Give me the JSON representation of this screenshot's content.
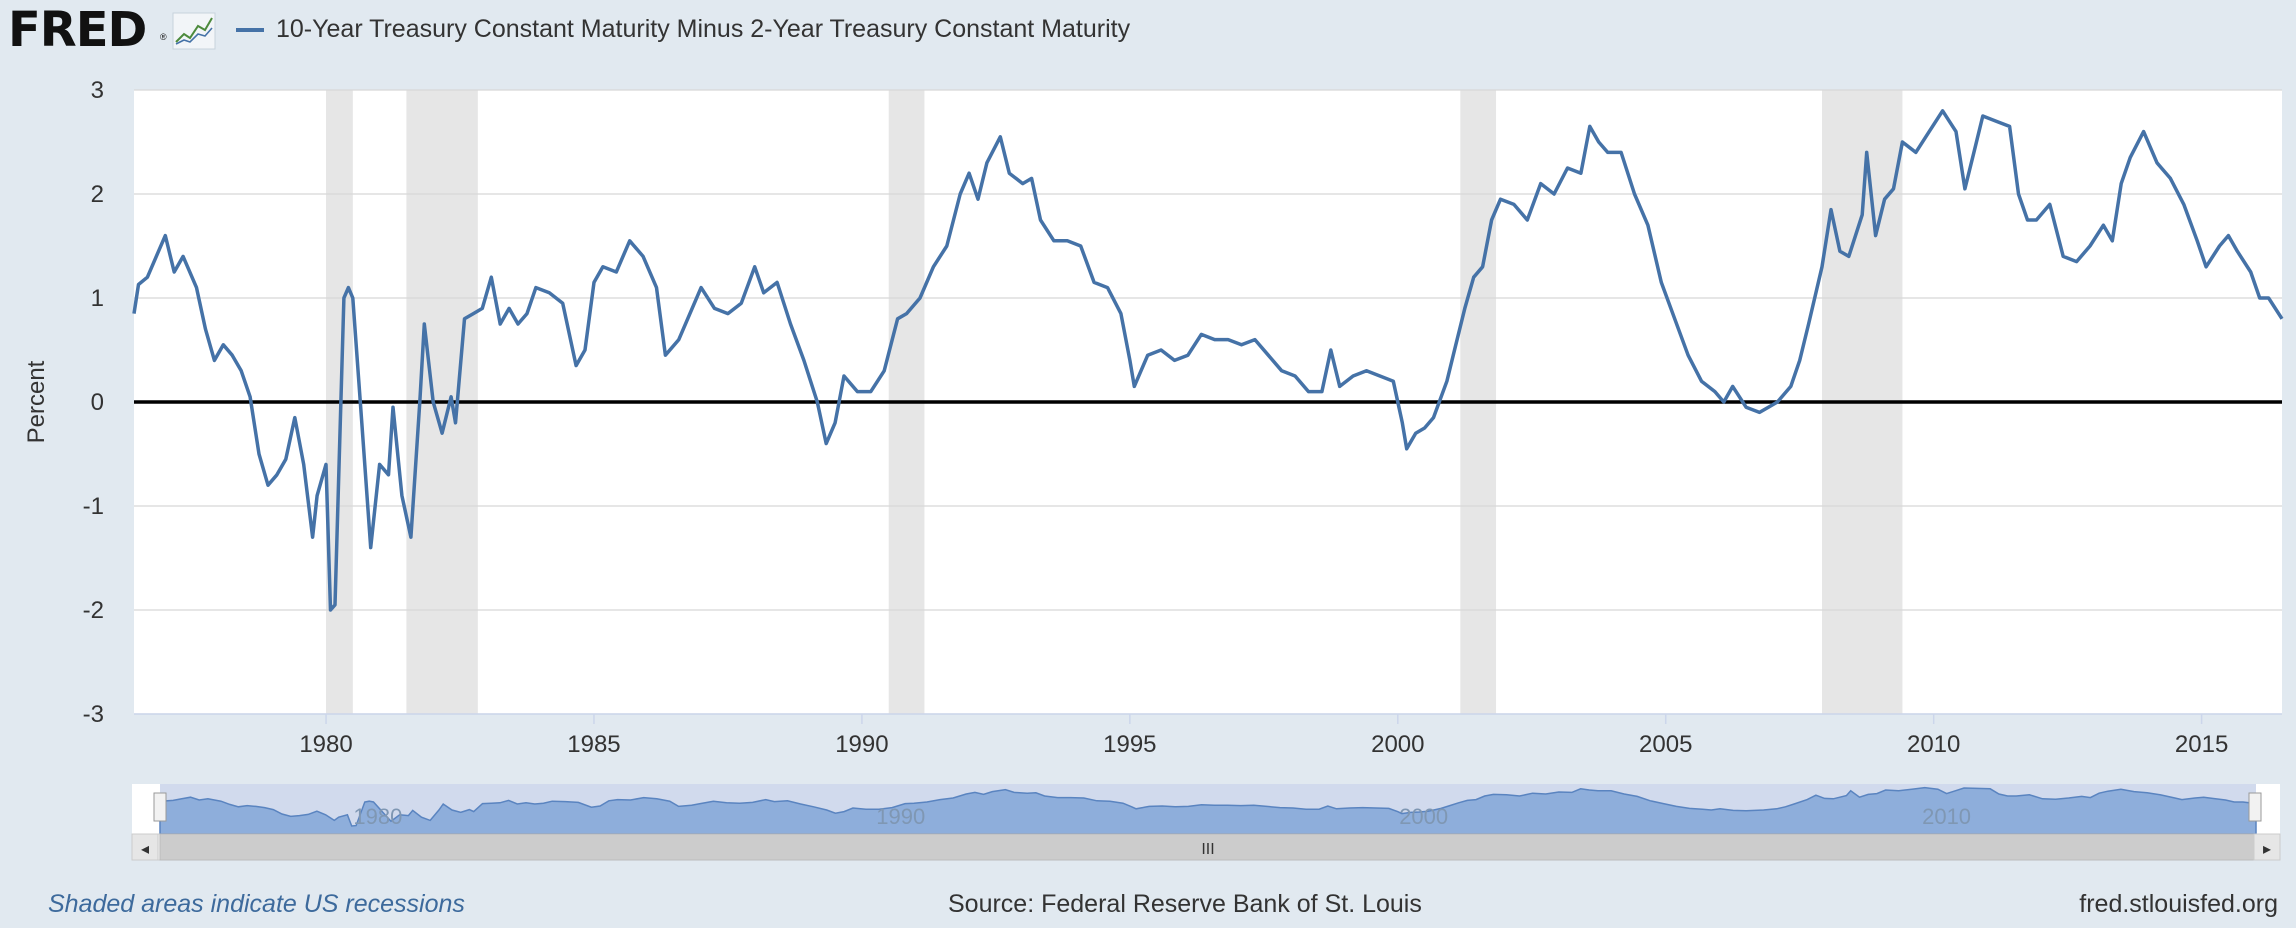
{
  "header": {
    "logo_text": "FRED",
    "logo_mark": "®",
    "logo_icon": "line-chart-icon",
    "series_title": "10-Year Treasury Constant Maturity Minus 2-Year Treasury Constant Maturity",
    "series_color": "#4572a7"
  },
  "footer": {
    "recession_note": "Shaded areas indicate US recessions",
    "source": "Source: Federal Reserve Bank of St. Louis",
    "url": "fred.stlouisfed.org"
  },
  "navigator": {
    "labels": [
      "1980",
      "1990",
      "2000",
      "2010"
    ],
    "scrollbar_grip": "III",
    "left_arrow": "◂",
    "right_arrow": "▸"
  },
  "chart_data": {
    "type": "line",
    "title": "10-Year Treasury Constant Maturity Minus 2-Year Treasury Constant Maturity",
    "xlabel": "",
    "ylabel": "Percent",
    "ylim": [
      -3,
      3
    ],
    "xlim": [
      "1976-06",
      "2016-07"
    ],
    "x_ticks": [
      "1980",
      "1985",
      "1990",
      "1995",
      "2000",
      "2005",
      "2010",
      "2015"
    ],
    "y_ticks": [
      "3",
      "2",
      "1",
      "0",
      "-1",
      "-2",
      "-3"
    ],
    "grid": true,
    "zero_line": true,
    "line_color": "#4572a7",
    "recession_color": "#e6e6e6",
    "recessions": [
      [
        "1980-01",
        "1980-07"
      ],
      [
        "1981-07",
        "1982-11"
      ],
      [
        "1990-07",
        "1991-03"
      ],
      [
        "2001-03",
        "2001-11"
      ],
      [
        "2007-12",
        "2009-06"
      ]
    ],
    "series": [
      {
        "values": [
          [
            "1976-06",
            0.85
          ],
          [
            "1976-07",
            1.13
          ],
          [
            "1976-09",
            1.2
          ],
          [
            "1976-11",
            1.4
          ],
          [
            "1977-01",
            1.6
          ],
          [
            "1977-03",
            1.25
          ],
          [
            "1977-05",
            1.4
          ],
          [
            "1977-08",
            1.1
          ],
          [
            "1977-10",
            0.7
          ],
          [
            "1977-12",
            0.4
          ],
          [
            "1978-02",
            0.55
          ],
          [
            "1978-04",
            0.45
          ],
          [
            "1978-06",
            0.3
          ],
          [
            "1978-08",
            0.05
          ],
          [
            "1978-10",
            -0.5
          ],
          [
            "1978-12",
            -0.8
          ],
          [
            "1979-02",
            -0.7
          ],
          [
            "1979-04",
            -0.55
          ],
          [
            "1979-06",
            -0.15
          ],
          [
            "1979-08",
            -0.6
          ],
          [
            "1979-10",
            -1.3
          ],
          [
            "1979-11",
            -0.9
          ],
          [
            "1980-01",
            -0.6
          ],
          [
            "1980-02",
            -2.0
          ],
          [
            "1980-03",
            -1.95
          ],
          [
            "1980-05",
            1.0
          ],
          [
            "1980-06",
            1.1
          ],
          [
            "1980-07",
            1.0
          ],
          [
            "1980-09",
            -0.2
          ],
          [
            "1980-11",
            -1.4
          ],
          [
            "1981-01",
            -0.6
          ],
          [
            "1981-03",
            -0.7
          ],
          [
            "1981-04",
            -0.05
          ],
          [
            "1981-06",
            -0.9
          ],
          [
            "1981-08",
            -1.3
          ],
          [
            "1981-10",
            0.0
          ],
          [
            "1981-11",
            0.75
          ],
          [
            "1982-01",
            0.0
          ],
          [
            "1982-03",
            -0.3
          ],
          [
            "1982-05",
            0.05
          ],
          [
            "1982-06",
            -0.2
          ],
          [
            "1982-08",
            0.8
          ],
          [
            "1982-10",
            0.85
          ],
          [
            "1982-12",
            0.9
          ],
          [
            "1983-02",
            1.2
          ],
          [
            "1983-04",
            0.75
          ],
          [
            "1983-06",
            0.9
          ],
          [
            "1983-08",
            0.75
          ],
          [
            "1983-10",
            0.85
          ],
          [
            "1983-12",
            1.1
          ],
          [
            "1984-03",
            1.05
          ],
          [
            "1984-06",
            0.95
          ],
          [
            "1984-09",
            0.35
          ],
          [
            "1984-11",
            0.5
          ],
          [
            "1985-01",
            1.15
          ],
          [
            "1985-03",
            1.3
          ],
          [
            "1985-06",
            1.25
          ],
          [
            "1985-09",
            1.55
          ],
          [
            "1985-12",
            1.4
          ],
          [
            "1986-03",
            1.1
          ],
          [
            "1986-05",
            0.45
          ],
          [
            "1986-08",
            0.6
          ],
          [
            "1986-10",
            0.8
          ],
          [
            "1987-01",
            1.1
          ],
          [
            "1987-04",
            0.9
          ],
          [
            "1987-07",
            0.85
          ],
          [
            "1987-10",
            0.95
          ],
          [
            "1988-01",
            1.3
          ],
          [
            "1988-03",
            1.05
          ],
          [
            "1988-06",
            1.15
          ],
          [
            "1988-09",
            0.75
          ],
          [
            "1988-12",
            0.4
          ],
          [
            "1989-03",
            0.0
          ],
          [
            "1989-05",
            -0.4
          ],
          [
            "1989-07",
            -0.2
          ],
          [
            "1989-09",
            0.25
          ],
          [
            "1989-12",
            0.1
          ],
          [
            "1990-03",
            0.1
          ],
          [
            "1990-06",
            0.3
          ],
          [
            "1990-09",
            0.8
          ],
          [
            "1990-11",
            0.85
          ],
          [
            "1991-02",
            1.0
          ],
          [
            "1991-05",
            1.3
          ],
          [
            "1991-08",
            1.5
          ],
          [
            "1991-11",
            2.0
          ],
          [
            "1992-01",
            2.2
          ],
          [
            "1992-03",
            1.95
          ],
          [
            "1992-05",
            2.3
          ],
          [
            "1992-08",
            2.55
          ],
          [
            "1992-10",
            2.2
          ],
          [
            "1993-01",
            2.1
          ],
          [
            "1993-03",
            2.15
          ],
          [
            "1993-05",
            1.75
          ],
          [
            "1993-08",
            1.55
          ],
          [
            "1993-11",
            1.55
          ],
          [
            "1994-02",
            1.5
          ],
          [
            "1994-05",
            1.15
          ],
          [
            "1994-08",
            1.1
          ],
          [
            "1994-11",
            0.85
          ],
          [
            "1995-01",
            0.4
          ],
          [
            "1995-02",
            0.15
          ],
          [
            "1995-05",
            0.45
          ],
          [
            "1995-08",
            0.5
          ],
          [
            "1995-11",
            0.4
          ],
          [
            "1996-02",
            0.45
          ],
          [
            "1996-05",
            0.65
          ],
          [
            "1996-08",
            0.6
          ],
          [
            "1996-11",
            0.6
          ],
          [
            "1997-02",
            0.55
          ],
          [
            "1997-05",
            0.6
          ],
          [
            "1997-08",
            0.45
          ],
          [
            "1997-11",
            0.3
          ],
          [
            "1998-02",
            0.25
          ],
          [
            "1998-05",
            0.1
          ],
          [
            "1998-08",
            0.1
          ],
          [
            "1998-10",
            0.5
          ],
          [
            "1998-12",
            0.15
          ],
          [
            "1999-03",
            0.25
          ],
          [
            "1999-06",
            0.3
          ],
          [
            "1999-09",
            0.25
          ],
          [
            "1999-12",
            0.2
          ],
          [
            "2000-02",
            -0.2
          ],
          [
            "2000-03",
            -0.45
          ],
          [
            "2000-05",
            -0.3
          ],
          [
            "2000-07",
            -0.25
          ],
          [
            "2000-09",
            -0.15
          ],
          [
            "2000-12",
            0.2
          ],
          [
            "2001-02",
            0.55
          ],
          [
            "2001-04",
            0.9
          ],
          [
            "2001-06",
            1.2
          ],
          [
            "2001-08",
            1.3
          ],
          [
            "2001-10",
            1.75
          ],
          [
            "2001-12",
            1.95
          ],
          [
            "2002-03",
            1.9
          ],
          [
            "2002-06",
            1.75
          ],
          [
            "2002-09",
            2.1
          ],
          [
            "2002-12",
            2.0
          ],
          [
            "2003-03",
            2.25
          ],
          [
            "2003-06",
            2.2
          ],
          [
            "2003-08",
            2.65
          ],
          [
            "2003-10",
            2.5
          ],
          [
            "2003-12",
            2.4
          ],
          [
            "2004-03",
            2.4
          ],
          [
            "2004-06",
            2.0
          ],
          [
            "2004-09",
            1.7
          ],
          [
            "2004-12",
            1.15
          ],
          [
            "2005-03",
            0.8
          ],
          [
            "2005-06",
            0.45
          ],
          [
            "2005-09",
            0.2
          ],
          [
            "2005-12",
            0.1
          ],
          [
            "2006-02",
            0.0
          ],
          [
            "2006-04",
            0.15
          ],
          [
            "2006-07",
            -0.05
          ],
          [
            "2006-10",
            -0.1
          ],
          [
            "2006-12",
            -0.05
          ],
          [
            "2007-02",
            0.0
          ],
          [
            "2007-05",
            0.15
          ],
          [
            "2007-07",
            0.4
          ],
          [
            "2007-09",
            0.75
          ],
          [
            "2007-12",
            1.3
          ],
          [
            "2008-02",
            1.85
          ],
          [
            "2008-04",
            1.45
          ],
          [
            "2008-06",
            1.4
          ],
          [
            "2008-09",
            1.8
          ],
          [
            "2008-10",
            2.4
          ],
          [
            "2008-12",
            1.6
          ],
          [
            "2009-02",
            1.95
          ],
          [
            "2009-04",
            2.05
          ],
          [
            "2009-06",
            2.5
          ],
          [
            "2009-09",
            2.4
          ],
          [
            "2009-12",
            2.6
          ],
          [
            "2010-03",
            2.8
          ],
          [
            "2010-06",
            2.6
          ],
          [
            "2010-08",
            2.05
          ],
          [
            "2010-10",
            2.4
          ],
          [
            "2010-12",
            2.75
          ],
          [
            "2011-03",
            2.7
          ],
          [
            "2011-06",
            2.65
          ],
          [
            "2011-08",
            2.0
          ],
          [
            "2011-10",
            1.75
          ],
          [
            "2011-12",
            1.75
          ],
          [
            "2012-03",
            1.9
          ],
          [
            "2012-06",
            1.4
          ],
          [
            "2012-09",
            1.35
          ],
          [
            "2012-12",
            1.5
          ],
          [
            "2013-03",
            1.7
          ],
          [
            "2013-05",
            1.55
          ],
          [
            "2013-07",
            2.1
          ],
          [
            "2013-09",
            2.35
          ],
          [
            "2013-12",
            2.6
          ],
          [
            "2014-03",
            2.3
          ],
          [
            "2014-06",
            2.15
          ],
          [
            "2014-09",
            1.9
          ],
          [
            "2014-12",
            1.55
          ],
          [
            "2015-02",
            1.3
          ],
          [
            "2015-05",
            1.5
          ],
          [
            "2015-07",
            1.6
          ],
          [
            "2015-09",
            1.45
          ],
          [
            "2015-12",
            1.25
          ],
          [
            "2016-02",
            1.0
          ],
          [
            "2016-04",
            1.0
          ],
          [
            "2016-07",
            0.8
          ]
        ]
      }
    ]
  }
}
